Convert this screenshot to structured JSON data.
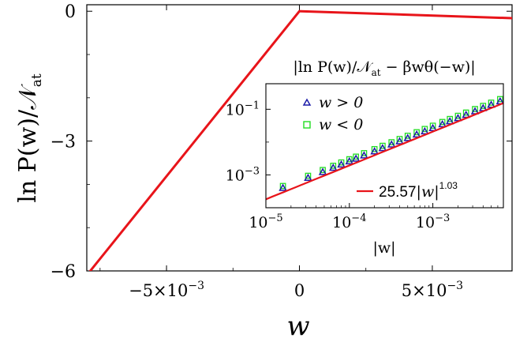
{
  "chart_data": [
    {
      "type": "line",
      "xlabel": "w",
      "ylabel": "ln P(w)/𝒩",
      "ylabel_sub": "at",
      "xlim": [
        -0.008,
        0.008
      ],
      "ylim": [
        -6,
        0.15
      ],
      "xticks": [
        {
          "value": -0.005,
          "mant": "−5×10",
          "exp": "−3"
        },
        {
          "value": 0,
          "mant": "0",
          "exp": ""
        },
        {
          "value": 0.005,
          "mant": "5×10",
          "exp": "−3"
        }
      ],
      "yticks": [
        {
          "value": 0,
          "label": "0"
        },
        {
          "value": -3,
          "label": "−3"
        },
        {
          "value": -6,
          "label": "−6"
        }
      ],
      "series": [
        {
          "color": "#e8141a",
          "x": [
            -0.008,
            0,
            0.008
          ],
          "y": [
            -6.1,
            0,
            -0.16
          ]
        }
      ]
    },
    {
      "type": "scatter",
      "title_parts": [
        "|ln P(w)/𝒩",
        "at",
        " − βwθ(−w)|"
      ],
      "xlabel": "|w|",
      "xscale": "log",
      "yscale": "log",
      "xlim": [
        1e-05,
        0.007
      ],
      "ylim": [
        0.0001,
        0.6
      ],
      "xticks": [
        {
          "value": 1e-05,
          "base": "10",
          "exp": "−5"
        },
        {
          "value": 0.0001,
          "base": "10",
          "exp": "−4"
        },
        {
          "value": 0.001,
          "base": "10",
          "exp": "−3"
        }
      ],
      "yticks": [
        {
          "value": 0.1,
          "base": "10",
          "exp": "−1"
        },
        {
          "value": 0.001,
          "base": "10",
          "exp": "−3"
        }
      ],
      "series": [
        {
          "name": "w > 0",
          "marker": "triangle",
          "color": "#1c1ca8",
          "x": [
            1.6e-05,
            3.2e-05,
            4.8e-05,
            6.4e-05,
            8e-05,
            0.0001,
            0.00012,
            0.00015,
            0.0002,
            0.00025,
            0.00032,
            0.0004,
            0.0005,
            0.00064,
            0.0008,
            0.001,
            0.0013,
            0.0016,
            0.002,
            0.0025,
            0.0032,
            0.004,
            0.005,
            0.0064
          ],
          "y": [
            0.0004,
            0.00081,
            0.00122,
            0.00164,
            0.00206,
            0.00258,
            0.0031,
            0.0039,
            0.0052,
            0.0065,
            0.0084,
            0.0105,
            0.0132,
            0.0169,
            0.0212,
            0.0266,
            0.0347,
            0.0428,
            0.0536,
            0.0672,
            0.0862,
            0.108,
            0.136,
            0.174
          ]
        },
        {
          "name": "w < 0",
          "marker": "square",
          "color": "#22dd22",
          "x": [
            1.6e-05,
            3.2e-05,
            4.8e-05,
            6.4e-05,
            8e-05,
            0.0001,
            0.00012,
            0.00015,
            0.0002,
            0.00025,
            0.00032,
            0.0004,
            0.0005,
            0.00064,
            0.0008,
            0.001,
            0.0013,
            0.0016,
            0.002,
            0.0025,
            0.0032,
            0.004,
            0.005,
            0.0064
          ],
          "y": [
            0.00046,
            0.00094,
            0.00141,
            0.0019,
            0.0024,
            0.003,
            0.0036,
            0.0046,
            0.0061,
            0.0077,
            0.0099,
            0.0124,
            0.0156,
            0.02,
            0.0251,
            0.0315,
            0.041,
            0.0505,
            0.0632,
            0.0792,
            0.1015,
            0.127,
            0.159,
            0.204
          ]
        },
        {
          "name": "25.57|w|^1.03",
          "type": "line",
          "color": "#e8141a",
          "coefficient": 25.57,
          "exponent": 1.03
        }
      ],
      "legend": [
        {
          "parts": [
            "w > 0"
          ],
          "marker": "triangle",
          "color": "#1c1ca8"
        },
        {
          "parts": [
            "w < 0"
          ],
          "marker": "square",
          "color": "#22dd22"
        },
        {
          "parts": [
            "25.57",
            "|w|",
            "1.03"
          ],
          "marker": "line",
          "color": "#e8141a"
        }
      ]
    }
  ]
}
